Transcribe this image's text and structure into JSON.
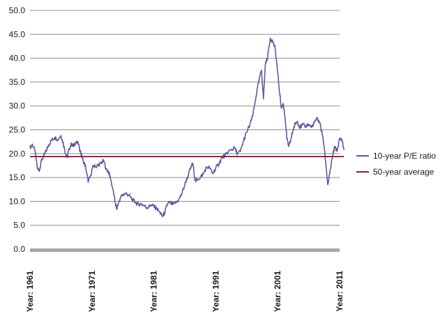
{
  "chart_data": {
    "type": "line",
    "title": "",
    "xlabel": "",
    "ylabel": "",
    "ylim": [
      0,
      50
    ],
    "xlim": [
      1961,
      2011
    ],
    "grid": true,
    "legend_position": "right",
    "y_ticks": [
      "0.0",
      "5.0",
      "10.0",
      "15.0",
      "20.0",
      "25.0",
      "30.0",
      "35.0",
      "40.0",
      "45.0",
      "50.0"
    ],
    "x_ticks": [
      {
        "value": 1961,
        "label": "Year: 1961"
      },
      {
        "value": 1971,
        "label": "Year: 1971"
      },
      {
        "value": 1981,
        "label": "Year: 1981"
      },
      {
        "value": 1991,
        "label": "Year: 1991"
      },
      {
        "value": 2001,
        "label": "Year: 2001"
      },
      {
        "value": 2011,
        "label": "Year: 2011"
      }
    ],
    "series": [
      {
        "name": "10-year P/E ratio",
        "color": "#5b5b9b",
        "points": [
          [
            1961.0,
            21.2
          ],
          [
            1961.4,
            22.0
          ],
          [
            1961.8,
            20.5
          ],
          [
            1962.2,
            17.0
          ],
          [
            1962.5,
            16.3
          ],
          [
            1962.8,
            18.5
          ],
          [
            1963.2,
            19.5
          ],
          [
            1963.6,
            20.5
          ],
          [
            1964.0,
            21.8
          ],
          [
            1964.5,
            22.8
          ],
          [
            1965.0,
            23.4
          ],
          [
            1965.5,
            23.0
          ],
          [
            1966.0,
            23.8
          ],
          [
            1966.4,
            22.0
          ],
          [
            1966.8,
            19.8
          ],
          [
            1967.0,
            19.2
          ],
          [
            1967.3,
            21.0
          ],
          [
            1967.7,
            22.0
          ],
          [
            1968.0,
            21.5
          ],
          [
            1968.4,
            22.5
          ],
          [
            1968.8,
            22.0
          ],
          [
            1969.2,
            20.2
          ],
          [
            1969.6,
            18.5
          ],
          [
            1970.0,
            17.2
          ],
          [
            1970.4,
            14.0
          ],
          [
            1970.8,
            15.5
          ],
          [
            1971.2,
            17.5
          ],
          [
            1971.6,
            17.2
          ],
          [
            1972.0,
            17.6
          ],
          [
            1972.5,
            18.0
          ],
          [
            1972.9,
            18.6
          ],
          [
            1973.3,
            16.8
          ],
          [
            1973.7,
            16.2
          ],
          [
            1974.0,
            14.8
          ],
          [
            1974.4,
            12.5
          ],
          [
            1974.8,
            9.5
          ],
          [
            1975.0,
            8.5
          ],
          [
            1975.3,
            9.6
          ],
          [
            1975.6,
            10.8
          ],
          [
            1976.0,
            11.4
          ],
          [
            1976.5,
            11.7
          ],
          [
            1977.0,
            11.3
          ],
          [
            1977.5,
            10.4
          ],
          [
            1978.0,
            9.8
          ],
          [
            1978.5,
            9.4
          ],
          [
            1979.0,
            9.5
          ],
          [
            1979.5,
            9.0
          ],
          [
            1980.0,
            8.7
          ],
          [
            1980.5,
            9.2
          ],
          [
            1981.0,
            9.0
          ],
          [
            1981.5,
            8.4
          ],
          [
            1982.0,
            7.6
          ],
          [
            1982.4,
            6.8
          ],
          [
            1982.8,
            7.8
          ],
          [
            1983.2,
            9.5
          ],
          [
            1983.6,
            9.8
          ],
          [
            1984.0,
            9.3
          ],
          [
            1984.5,
            9.6
          ],
          [
            1985.0,
            10.3
          ],
          [
            1985.5,
            11.5
          ],
          [
            1986.0,
            13.5
          ],
          [
            1986.5,
            15.3
          ],
          [
            1987.0,
            17.2
          ],
          [
            1987.3,
            18.0
          ],
          [
            1987.7,
            14.2
          ],
          [
            1988.0,
            14.6
          ],
          [
            1988.5,
            15.0
          ],
          [
            1989.0,
            15.8
          ],
          [
            1989.5,
            17.2
          ],
          [
            1990.0,
            17.0
          ],
          [
            1990.5,
            15.8
          ],
          [
            1991.0,
            17.0
          ],
          [
            1991.5,
            17.8
          ],
          [
            1992.0,
            19.2
          ],
          [
            1992.5,
            19.6
          ],
          [
            1993.0,
            20.4
          ],
          [
            1993.5,
            20.8
          ],
          [
            1994.0,
            21.2
          ],
          [
            1994.5,
            20.0
          ],
          [
            1995.0,
            20.5
          ],
          [
            1995.5,
            22.8
          ],
          [
            1996.0,
            24.5
          ],
          [
            1996.5,
            26.0
          ],
          [
            1997.0,
            28.0
          ],
          [
            1997.5,
            32.0
          ],
          [
            1998.0,
            35.5
          ],
          [
            1998.4,
            37.5
          ],
          [
            1998.7,
            31.5
          ],
          [
            1999.0,
            38.5
          ],
          [
            1999.4,
            40.5
          ],
          [
            1999.8,
            44.2
          ],
          [
            2000.2,
            43.5
          ],
          [
            2000.6,
            42.0
          ],
          [
            2001.0,
            37.0
          ],
          [
            2001.3,
            33.0
          ],
          [
            2001.6,
            29.5
          ],
          [
            2001.9,
            30.5
          ],
          [
            2002.2,
            27.5
          ],
          [
            2002.5,
            23.0
          ],
          [
            2002.8,
            21.5
          ],
          [
            2003.1,
            22.8
          ],
          [
            2003.5,
            25.0
          ],
          [
            2003.8,
            26.2
          ],
          [
            2004.2,
            26.8
          ],
          [
            2004.6,
            25.5
          ],
          [
            2005.0,
            26.0
          ],
          [
            2005.5,
            25.8
          ],
          [
            2006.0,
            26.2
          ],
          [
            2006.5,
            25.5
          ],
          [
            2007.0,
            26.8
          ],
          [
            2007.4,
            27.3
          ],
          [
            2007.8,
            26.5
          ],
          [
            2008.2,
            24.0
          ],
          [
            2008.5,
            21.5
          ],
          [
            2008.8,
            17.5
          ],
          [
            2009.1,
            13.5
          ],
          [
            2009.4,
            15.8
          ],
          [
            2009.8,
            19.0
          ],
          [
            2010.2,
            21.5
          ],
          [
            2010.6,
            20.5
          ],
          [
            2011.0,
            23.2
          ],
          [
            2011.4,
            22.8
          ],
          [
            2011.7,
            20.8
          ]
        ]
      },
      {
        "name": "50-year average",
        "color": "#7b2340",
        "points": [
          [
            1961.0,
            19.4
          ],
          [
            2011.7,
            19.4
          ]
        ]
      }
    ]
  }
}
